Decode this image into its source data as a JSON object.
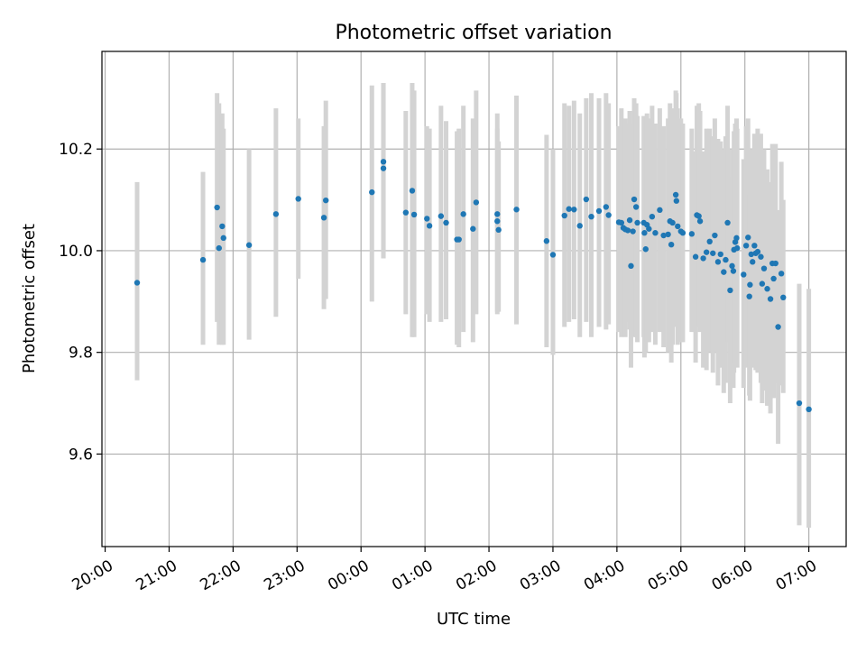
{
  "chart_data": {
    "type": "scatter",
    "title": "Photometric offset variation",
    "xlabel": "UTC time",
    "ylabel": "Photometric offset",
    "x_unit": "hours relative to 00:00 UTC (previous evening negative)",
    "xlim": [
      "19:57",
      "07:35"
    ],
    "ylim": [
      9.418,
      10.392
    ],
    "x_ticks": [
      "20:00",
      "21:00",
      "22:00",
      "23:00",
      "00:00",
      "01:00",
      "02:00",
      "03:00",
      "04:00",
      "05:00",
      "06:00",
      "07:00"
    ],
    "y_ticks": [
      "9.6",
      "9.8",
      "10.0",
      "10.2"
    ],
    "grid": true,
    "colors": {
      "points": "#1f77b4",
      "errorbars": "#d3d3d3",
      "grid": "#b0b0b0"
    },
    "series": [
      {
        "x_hours": [
          -3.5,
          -2.47,
          -2.25,
          -2.22,
          -2.17,
          -2.15,
          -1.75,
          -1.33,
          -0.98,
          -0.58,
          -0.55,
          0.17,
          0.35,
          0.35,
          0.7,
          0.8,
          0.83,
          1.03,
          1.07,
          1.25,
          1.33,
          1.5,
          1.53,
          1.6,
          1.75,
          1.8,
          2.13,
          2.13,
          2.15,
          2.43,
          2.9,
          3.0,
          3.18,
          3.25,
          3.33,
          3.42,
          3.52,
          3.6,
          3.72,
          3.83,
          3.87,
          4.03,
          4.07,
          4.1,
          4.13,
          4.17,
          4.2,
          4.22,
          4.25,
          4.27,
          4.3,
          4.32,
          4.42,
          4.43,
          4.45,
          4.47,
          4.5,
          4.55,
          4.6,
          4.67,
          4.73,
          4.8,
          4.83,
          4.85,
          4.87,
          4.92,
          4.93,
          4.95,
          5.0,
          5.03,
          5.17,
          5.23,
          5.25,
          5.28,
          5.3,
          5.35,
          5.4,
          5.45,
          5.5,
          5.53,
          5.58,
          5.62,
          5.67,
          5.7,
          5.73,
          5.77,
          5.8,
          5.82,
          5.83,
          5.85,
          5.87,
          5.88,
          5.98,
          6.02,
          6.05,
          6.07,
          6.08,
          6.1,
          6.12,
          6.15,
          6.17,
          6.2,
          6.25,
          6.27,
          6.3,
          6.35,
          6.4,
          6.43,
          6.45,
          6.48,
          6.52,
          6.57,
          6.6,
          6.85,
          7.0
        ],
        "y": [
          9.937,
          9.982,
          10.085,
          10.005,
          10.048,
          10.025,
          10.011,
          10.072,
          10.102,
          10.065,
          10.099,
          10.115,
          10.175,
          10.162,
          10.075,
          10.118,
          10.071,
          10.063,
          10.049,
          10.068,
          10.055,
          10.022,
          10.022,
          10.072,
          10.043,
          10.095,
          10.072,
          10.058,
          10.041,
          10.081,
          10.019,
          9.992,
          10.069,
          10.082,
          10.081,
          10.049,
          10.101,
          10.067,
          10.078,
          10.086,
          10.07,
          10.056,
          10.055,
          10.045,
          10.042,
          10.04,
          10.06,
          9.97,
          10.038,
          10.101,
          10.086,
          10.055,
          10.055,
          10.035,
          10.003,
          10.051,
          10.043,
          10.067,
          10.035,
          10.08,
          10.03,
          10.032,
          10.058,
          10.012,
          10.055,
          10.11,
          10.098,
          10.048,
          10.038,
          10.035,
          10.033,
          9.988,
          10.07,
          10.068,
          10.058,
          9.985,
          9.997,
          10.018,
          9.995,
          10.03,
          9.978,
          9.993,
          9.958,
          9.982,
          10.055,
          9.922,
          9.97,
          9.96,
          10.002,
          10.017,
          10.025,
          10.005,
          9.953,
          10.01,
          10.026,
          9.91,
          9.933,
          9.993,
          9.978,
          10.01,
          9.995,
          9.998,
          9.988,
          9.935,
          9.965,
          9.925,
          9.905,
          9.975,
          9.945,
          9.975,
          9.85,
          9.955,
          9.908,
          9.7,
          9.688
        ],
        "y_lower": [
          9.745,
          9.815,
          9.86,
          9.815,
          9.815,
          9.815,
          9.825,
          9.87,
          9.945,
          9.885,
          9.905,
          9.9,
          9.985,
          9.985,
          9.875,
          9.83,
          9.83,
          9.875,
          9.86,
          9.86,
          9.865,
          9.815,
          9.81,
          9.84,
          9.82,
          9.875,
          9.875,
          9.88,
          9.88,
          9.855,
          9.81,
          9.795,
          9.85,
          9.86,
          9.865,
          9.83,
          9.86,
          9.83,
          9.85,
          9.845,
          9.855,
          9.84,
          9.83,
          9.845,
          9.83,
          9.86,
          9.845,
          9.77,
          9.84,
          9.83,
          9.83,
          9.82,
          9.83,
          9.79,
          9.8,
          9.82,
          9.82,
          9.84,
          9.815,
          9.84,
          9.81,
          9.8,
          9.845,
          9.78,
          9.815,
          9.86,
          9.85,
          9.815,
          9.82,
          9.82,
          9.84,
          9.78,
          9.85,
          9.85,
          9.84,
          9.77,
          9.765,
          9.8,
          9.76,
          9.8,
          9.735,
          9.77,
          9.72,
          9.74,
          9.82,
          9.7,
          9.735,
          9.73,
          9.76,
          9.78,
          9.79,
          9.77,
          9.73,
          9.77,
          9.8,
          9.715,
          9.705,
          9.79,
          9.77,
          9.78,
          9.765,
          9.76,
          9.74,
          9.7,
          9.725,
          9.695,
          9.68,
          9.74,
          9.71,
          9.74,
          9.62,
          9.735,
          9.72,
          9.46,
          9.455
        ],
        "y_upper": [
          10.135,
          10.155,
          10.31,
          10.29,
          10.27,
          10.24,
          10.2,
          10.28,
          10.26,
          10.245,
          10.295,
          10.325,
          10.33,
          10.33,
          10.275,
          10.33,
          10.315,
          10.245,
          10.24,
          10.285,
          10.255,
          10.235,
          10.24,
          10.285,
          10.26,
          10.315,
          10.27,
          10.24,
          10.215,
          10.305,
          10.228,
          10.2,
          10.29,
          10.285,
          10.295,
          10.27,
          10.3,
          10.31,
          10.3,
          10.31,
          10.29,
          10.245,
          10.28,
          10.25,
          10.26,
          10.25,
          10.275,
          10.175,
          10.25,
          10.3,
          10.29,
          10.265,
          10.265,
          10.25,
          10.215,
          10.27,
          10.26,
          10.285,
          10.25,
          10.28,
          10.245,
          10.26,
          10.29,
          10.23,
          10.28,
          10.315,
          10.31,
          10.28,
          10.26,
          10.25,
          10.24,
          10.195,
          10.285,
          10.29,
          10.275,
          10.195,
          10.24,
          10.24,
          10.225,
          10.26,
          10.22,
          10.215,
          10.2,
          10.225,
          10.285,
          10.145,
          10.2,
          10.19,
          10.235,
          10.25,
          10.26,
          10.24,
          10.18,
          10.245,
          10.26,
          10.11,
          10.155,
          10.2,
          10.2,
          10.23,
          10.225,
          10.24,
          10.23,
          10.18,
          10.2,
          10.16,
          10.135,
          10.21,
          10.18,
          10.21,
          10.08,
          10.175,
          10.1,
          9.935,
          9.925
        ]
      }
    ]
  }
}
